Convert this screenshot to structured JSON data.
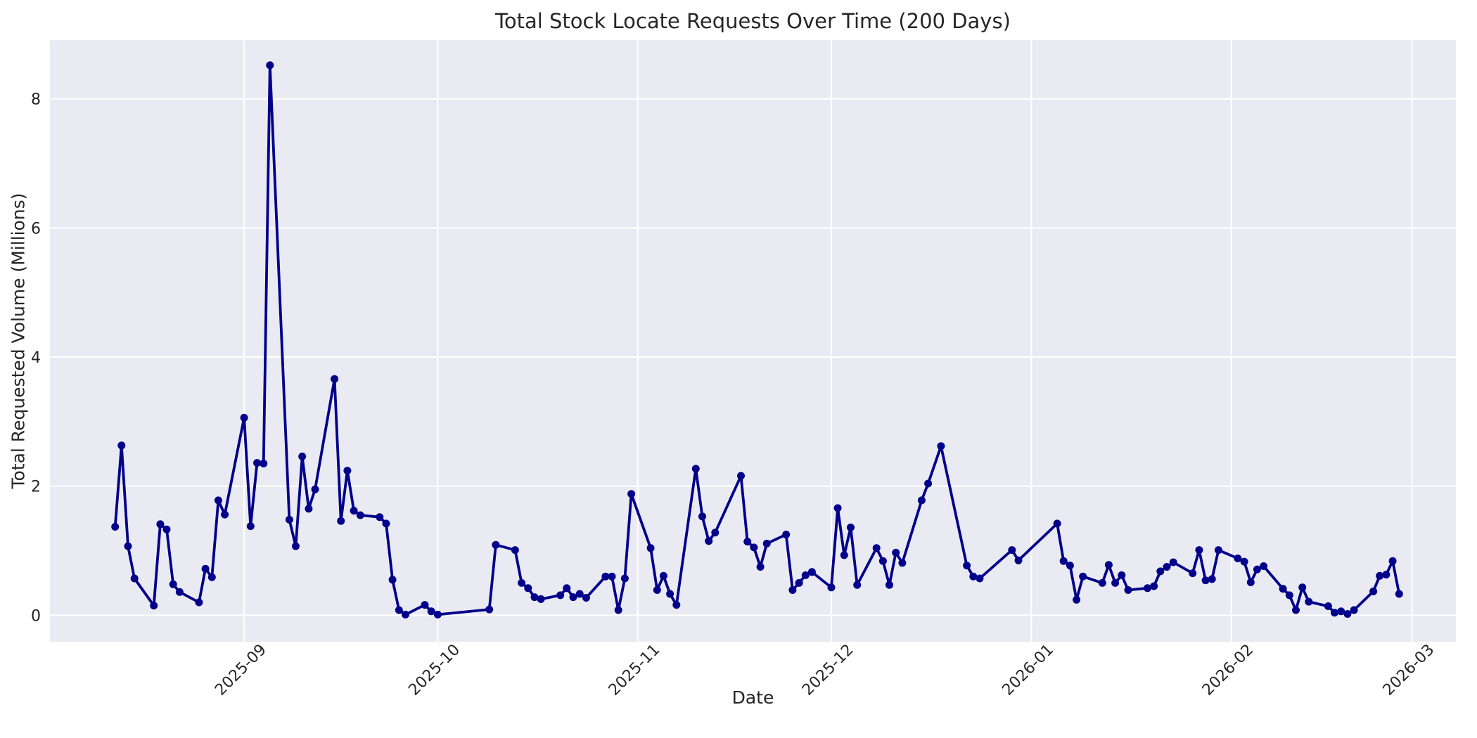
{
  "colors": {
    "line": "#00008b",
    "plot_background": "#eaeaf2",
    "grid": "#ffffff",
    "text": "#262626",
    "figure_background": "#ffffff"
  },
  "chart_data": {
    "type": "line",
    "title": "Total Stock Locate Requests Over Time (200 Days)",
    "xlabel": "Date",
    "ylabel": "Total Requested Volume (Millions)",
    "legend": false,
    "grid": true,
    "marker": "circle",
    "ylim": [
      -0.41,
      8.91
    ],
    "xlim_days_from_first_point": [
      -10.1,
      207.8
    ],
    "yticks": [
      0,
      2,
      4,
      6,
      8
    ],
    "xticks": [
      {
        "label": "2025-09",
        "date": "2025-09-01"
      },
      {
        "label": "2025-10",
        "date": "2025-10-01"
      },
      {
        "label": "2025-11",
        "date": "2025-11-01"
      },
      {
        "label": "2025-12",
        "date": "2025-12-01"
      },
      {
        "label": "2026-01",
        "date": "2026-01-01"
      },
      {
        "label": "2026-02",
        "date": "2026-02-01"
      },
      {
        "label": "2026-03",
        "date": "2026-03-01"
      }
    ],
    "points": [
      [
        "2025-08-12",
        1.37
      ],
      [
        "2025-08-13",
        2.63
      ],
      [
        "2025-08-14",
        1.07
      ],
      [
        "2025-08-15",
        0.57
      ],
      [
        "2025-08-18",
        0.15
      ],
      [
        "2025-08-19",
        1.41
      ],
      [
        "2025-08-20",
        1.33
      ],
      [
        "2025-08-21",
        0.48
      ],
      [
        "2025-08-22",
        0.36
      ],
      [
        "2025-08-25",
        0.2
      ],
      [
        "2025-08-26",
        0.72
      ],
      [
        "2025-08-27",
        0.59
      ],
      [
        "2025-08-28",
        1.78
      ],
      [
        "2025-08-29",
        1.56
      ],
      [
        "2025-09-01",
        3.06
      ],
      [
        "2025-09-02",
        1.38
      ],
      [
        "2025-09-03",
        2.36
      ],
      [
        "2025-09-04",
        2.35
      ],
      [
        "2025-09-05",
        8.52
      ],
      [
        "2025-09-08",
        1.48
      ],
      [
        "2025-09-09",
        1.07
      ],
      [
        "2025-09-10",
        2.46
      ],
      [
        "2025-09-11",
        1.65
      ],
      [
        "2025-09-12",
        1.95
      ],
      [
        "2025-09-15",
        3.66
      ],
      [
        "2025-09-16",
        1.46
      ],
      [
        "2025-09-17",
        2.24
      ],
      [
        "2025-09-18",
        1.62
      ],
      [
        "2025-09-19",
        1.55
      ],
      [
        "2025-09-22",
        1.52
      ],
      [
        "2025-09-23",
        1.42
      ],
      [
        "2025-09-24",
        0.55
      ],
      [
        "2025-09-25",
        0.08
      ],
      [
        "2025-09-26",
        0.01
      ],
      [
        "2025-09-29",
        0.16
      ],
      [
        "2025-09-30",
        0.06
      ],
      [
        "2025-10-01",
        0.01
      ],
      [
        "2025-10-09",
        0.09
      ],
      [
        "2025-10-10",
        1.09
      ],
      [
        "2025-10-13",
        1.01
      ],
      [
        "2025-10-14",
        0.5
      ],
      [
        "2025-10-15",
        0.42
      ],
      [
        "2025-10-16",
        0.28
      ],
      [
        "2025-10-17",
        0.25
      ],
      [
        "2025-10-20",
        0.31
      ],
      [
        "2025-10-21",
        0.42
      ],
      [
        "2025-10-22",
        0.28
      ],
      [
        "2025-10-23",
        0.33
      ],
      [
        "2025-10-24",
        0.27
      ],
      [
        "2025-10-27",
        0.6
      ],
      [
        "2025-10-28",
        0.6
      ],
      [
        "2025-10-29",
        0.08
      ],
      [
        "2025-10-30",
        0.57
      ],
      [
        "2025-10-31",
        1.88
      ],
      [
        "2025-11-03",
        1.04
      ],
      [
        "2025-11-04",
        0.39
      ],
      [
        "2025-11-05",
        0.61
      ],
      [
        "2025-11-06",
        0.33
      ],
      [
        "2025-11-07",
        0.16
      ],
      [
        "2025-11-10",
        2.27
      ],
      [
        "2025-11-11",
        1.53
      ],
      [
        "2025-11-12",
        1.15
      ],
      [
        "2025-11-13",
        1.28
      ],
      [
        "2025-11-17",
        2.16
      ],
      [
        "2025-11-18",
        1.14
      ],
      [
        "2025-11-19",
        1.05
      ],
      [
        "2025-11-20",
        0.75
      ],
      [
        "2025-11-21",
        1.11
      ],
      [
        "2025-11-24",
        1.25
      ],
      [
        "2025-11-25",
        0.39
      ],
      [
        "2025-11-26",
        0.5
      ],
      [
        "2025-11-27",
        0.62
      ],
      [
        "2025-11-28",
        0.67
      ],
      [
        "2025-12-01",
        0.43
      ],
      [
        "2025-12-02",
        1.66
      ],
      [
        "2025-12-03",
        0.93
      ],
      [
        "2025-12-04",
        1.36
      ],
      [
        "2025-12-05",
        0.47
      ],
      [
        "2025-12-08",
        1.04
      ],
      [
        "2025-12-09",
        0.84
      ],
      [
        "2025-12-10",
        0.47
      ],
      [
        "2025-12-11",
        0.97
      ],
      [
        "2025-12-12",
        0.81
      ],
      [
        "2025-12-15",
        1.78
      ],
      [
        "2025-12-16",
        2.04
      ],
      [
        "2025-12-18",
        2.62
      ],
      [
        "2025-12-22",
        0.77
      ],
      [
        "2025-12-23",
        0.6
      ],
      [
        "2025-12-24",
        0.57
      ],
      [
        "2025-12-29",
        1.01
      ],
      [
        "2025-12-30",
        0.85
      ],
      [
        "2026-01-05",
        1.42
      ],
      [
        "2026-01-06",
        0.84
      ],
      [
        "2026-01-07",
        0.77
      ],
      [
        "2026-01-08",
        0.24
      ],
      [
        "2026-01-09",
        0.6
      ],
      [
        "2026-01-12",
        0.5
      ],
      [
        "2026-01-13",
        0.78
      ],
      [
        "2026-01-14",
        0.5
      ],
      [
        "2026-01-15",
        0.62
      ],
      [
        "2026-01-16",
        0.39
      ],
      [
        "2026-01-19",
        0.42
      ],
      [
        "2026-01-20",
        0.45
      ],
      [
        "2026-01-21",
        0.68
      ],
      [
        "2026-01-22",
        0.75
      ],
      [
        "2026-01-23",
        0.82
      ],
      [
        "2026-01-26",
        0.65
      ],
      [
        "2026-01-27",
        1.01
      ],
      [
        "2026-01-28",
        0.54
      ],
      [
        "2026-01-29",
        0.56
      ],
      [
        "2026-01-30",
        1.01
      ],
      [
        "2026-02-02",
        0.88
      ],
      [
        "2026-02-03",
        0.83
      ],
      [
        "2026-02-04",
        0.51
      ],
      [
        "2026-02-05",
        0.71
      ],
      [
        "2026-02-06",
        0.76
      ],
      [
        "2026-02-09",
        0.41
      ],
      [
        "2026-02-10",
        0.31
      ],
      [
        "2026-02-11",
        0.08
      ],
      [
        "2026-02-12",
        0.43
      ],
      [
        "2026-02-13",
        0.21
      ],
      [
        "2026-02-16",
        0.14
      ],
      [
        "2026-02-17",
        0.04
      ],
      [
        "2026-02-18",
        0.06
      ],
      [
        "2026-02-19",
        0.02
      ],
      [
        "2026-02-20",
        0.08
      ],
      [
        "2026-02-23",
        0.37
      ],
      [
        "2026-02-24",
        0.61
      ],
      [
        "2026-02-25",
        0.63
      ],
      [
        "2026-02-26",
        0.84
      ],
      [
        "2026-02-27",
        0.33
      ]
    ]
  }
}
